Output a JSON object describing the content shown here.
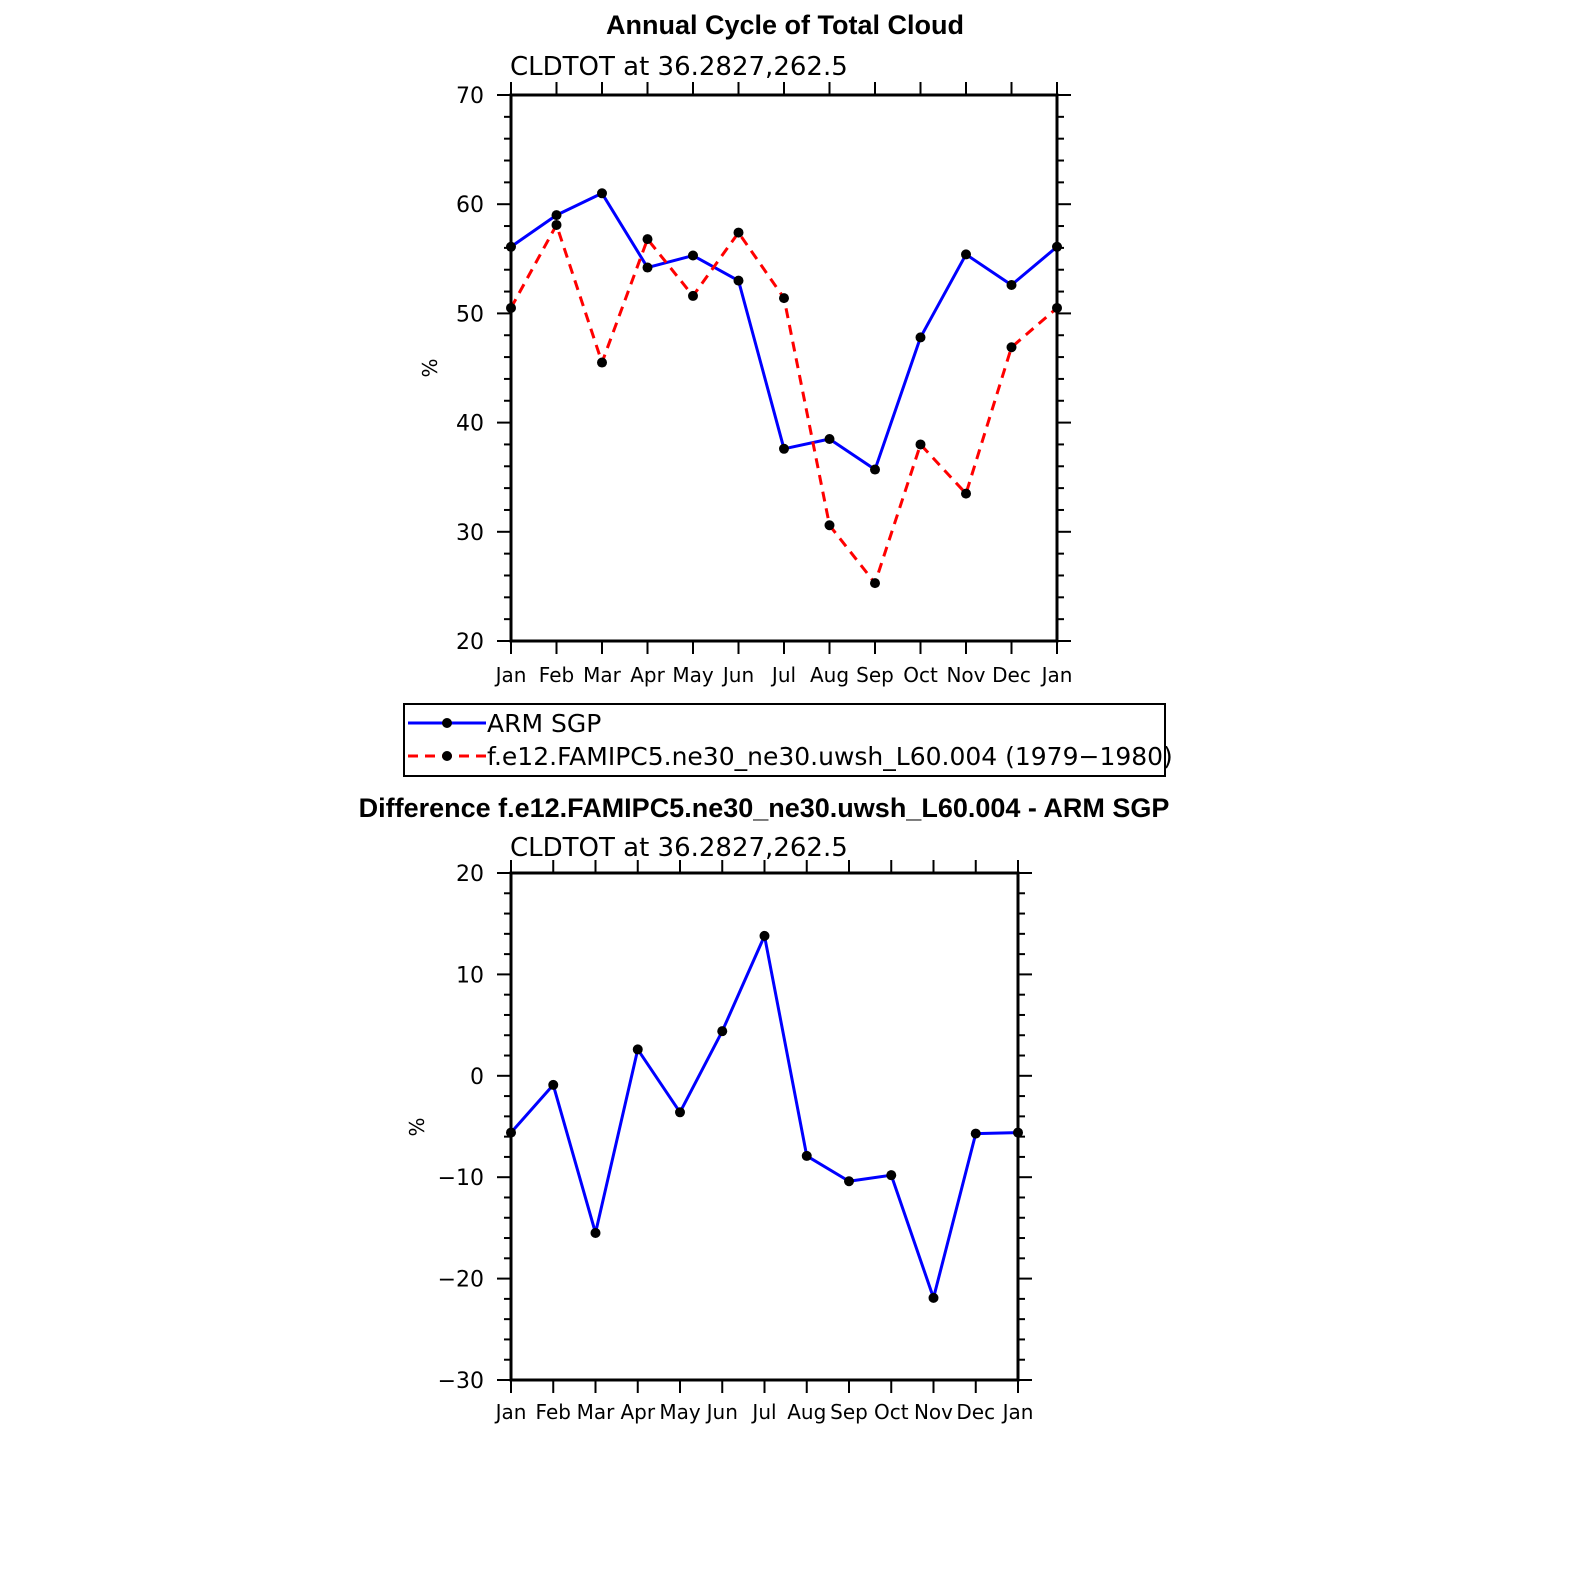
{
  "chart_data": [
    {
      "type": "line",
      "title": "Annual Cycle of Total Cloud",
      "subtitle": "CLDTOT at 36.2827,262.5",
      "xlabel": "",
      "ylabel": "%",
      "ylim": [
        20,
        70
      ],
      "yticks": [
        20,
        30,
        40,
        50,
        60,
        70
      ],
      "categories": [
        "Jan",
        "Feb",
        "Mar",
        "Apr",
        "May",
        "Jun",
        "Jul",
        "Aug",
        "Sep",
        "Oct",
        "Nov",
        "Dec",
        "Jan"
      ],
      "legend_position": "bottom",
      "series": [
        {
          "name": "ARM SGP",
          "color": "#0000ff",
          "dash": "solid",
          "values": [
            56.1,
            59.0,
            61.0,
            54.2,
            55.3,
            53.0,
            37.6,
            38.5,
            35.7,
            47.8,
            55.4,
            52.6,
            56.1
          ]
        },
        {
          "name": "f.e12.FAMIPC5.ne30_ne30.uwsh_L60.004 (1979−1980)",
          "color": "#ff0000",
          "dash": "dashed",
          "values": [
            50.5,
            58.1,
            45.5,
            56.8,
            51.6,
            57.4,
            51.4,
            30.6,
            25.3,
            38.0,
            33.5,
            46.9,
            50.5
          ]
        }
      ]
    },
    {
      "type": "line",
      "title": "Difference f.e12.FAMIPC5.ne30_ne30.uwsh_L60.004 - ARM SGP",
      "subtitle": "CLDTOT at 36.2827,262.5",
      "xlabel": "",
      "ylabel": "%",
      "ylim": [
        -30,
        20
      ],
      "yticks": [
        -30,
        -20,
        -10,
        0,
        10,
        20
      ],
      "categories": [
        "Jan",
        "Feb",
        "Mar",
        "Apr",
        "May",
        "Jun",
        "Jul",
        "Aug",
        "Sep",
        "Oct",
        "Nov",
        "Dec",
        "Jan"
      ],
      "series": [
        {
          "name": "Difference",
          "color": "#0000ff",
          "dash": "solid",
          "values": [
            -5.6,
            -0.9,
            -15.5,
            2.6,
            -3.6,
            4.4,
            13.8,
            -7.9,
            -10.4,
            -9.8,
            -21.9,
            -5.7,
            -5.6
          ]
        }
      ]
    }
  ]
}
